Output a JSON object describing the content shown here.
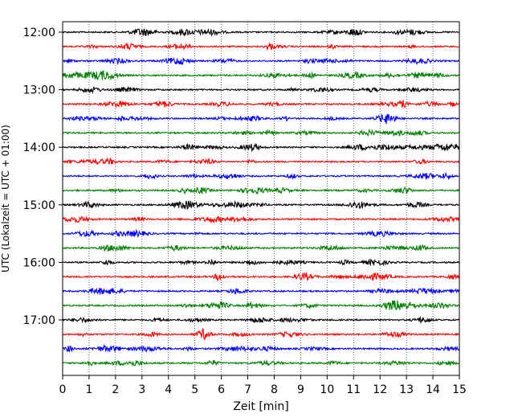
{
  "chart_data": {
    "type": "line",
    "title": "",
    "xlabel": "Zeit  [min]",
    "ylabel": "UTC (Lokalzeit = UTC + 01:00)",
    "xlim": [
      0,
      15
    ],
    "x_ticks": [
      0,
      1,
      2,
      3,
      4,
      5,
      6,
      7,
      8,
      9,
      10,
      11,
      12,
      13,
      14,
      15
    ],
    "y_tick_labels": [
      "12:00",
      "13:00",
      "14:00",
      "15:00",
      "16:00",
      "17:00"
    ],
    "hour_start": 12,
    "traces_per_hour": 4,
    "minutes_per_trace": 15,
    "trace_start_times": [
      "12:00",
      "12:15",
      "12:30",
      "12:45",
      "13:00",
      "13:15",
      "13:30",
      "13:45",
      "14:00",
      "14:15",
      "14:30",
      "14:45",
      "15:00",
      "15:15",
      "15:30",
      "15:45",
      "16:00",
      "16:15",
      "16:30",
      "16:45",
      "17:00",
      "17:15",
      "17:30",
      "17:45"
    ],
    "colors": [
      "#000000",
      "#ff0000",
      "#0000ff",
      "#008000"
    ],
    "grid": "vertical dotted",
    "legend": "none"
  }
}
